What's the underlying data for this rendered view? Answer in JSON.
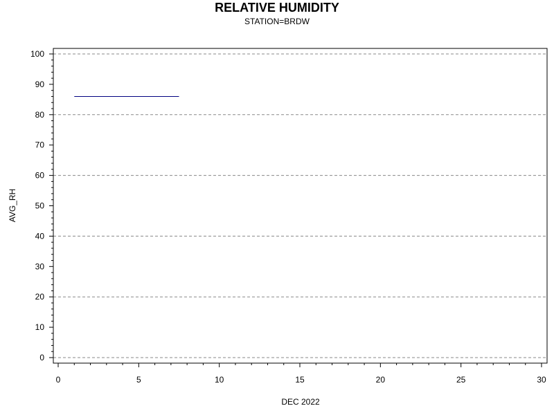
{
  "chart_data": {
    "type": "line",
    "title": "RELATIVE HUMIDITY",
    "subtitle": "STATION=BRDW",
    "xlabel": "DEC 2022",
    "ylabel": "AVG_RH",
    "xlim": [
      0,
      30
    ],
    "ylim": [
      0,
      100
    ],
    "x_ticks": [
      0,
      5,
      10,
      15,
      20,
      25,
      30
    ],
    "y_ticks": [
      0,
      10,
      20,
      30,
      40,
      50,
      60,
      70,
      80,
      90,
      100
    ],
    "y_gridlines": [
      0,
      20,
      40,
      60,
      80,
      100
    ],
    "grid": "dashed-horizontal",
    "series": [
      {
        "x": [
          1,
          7.5
        ],
        "y": [
          86,
          86
        ],
        "color": "#000080"
      }
    ]
  }
}
